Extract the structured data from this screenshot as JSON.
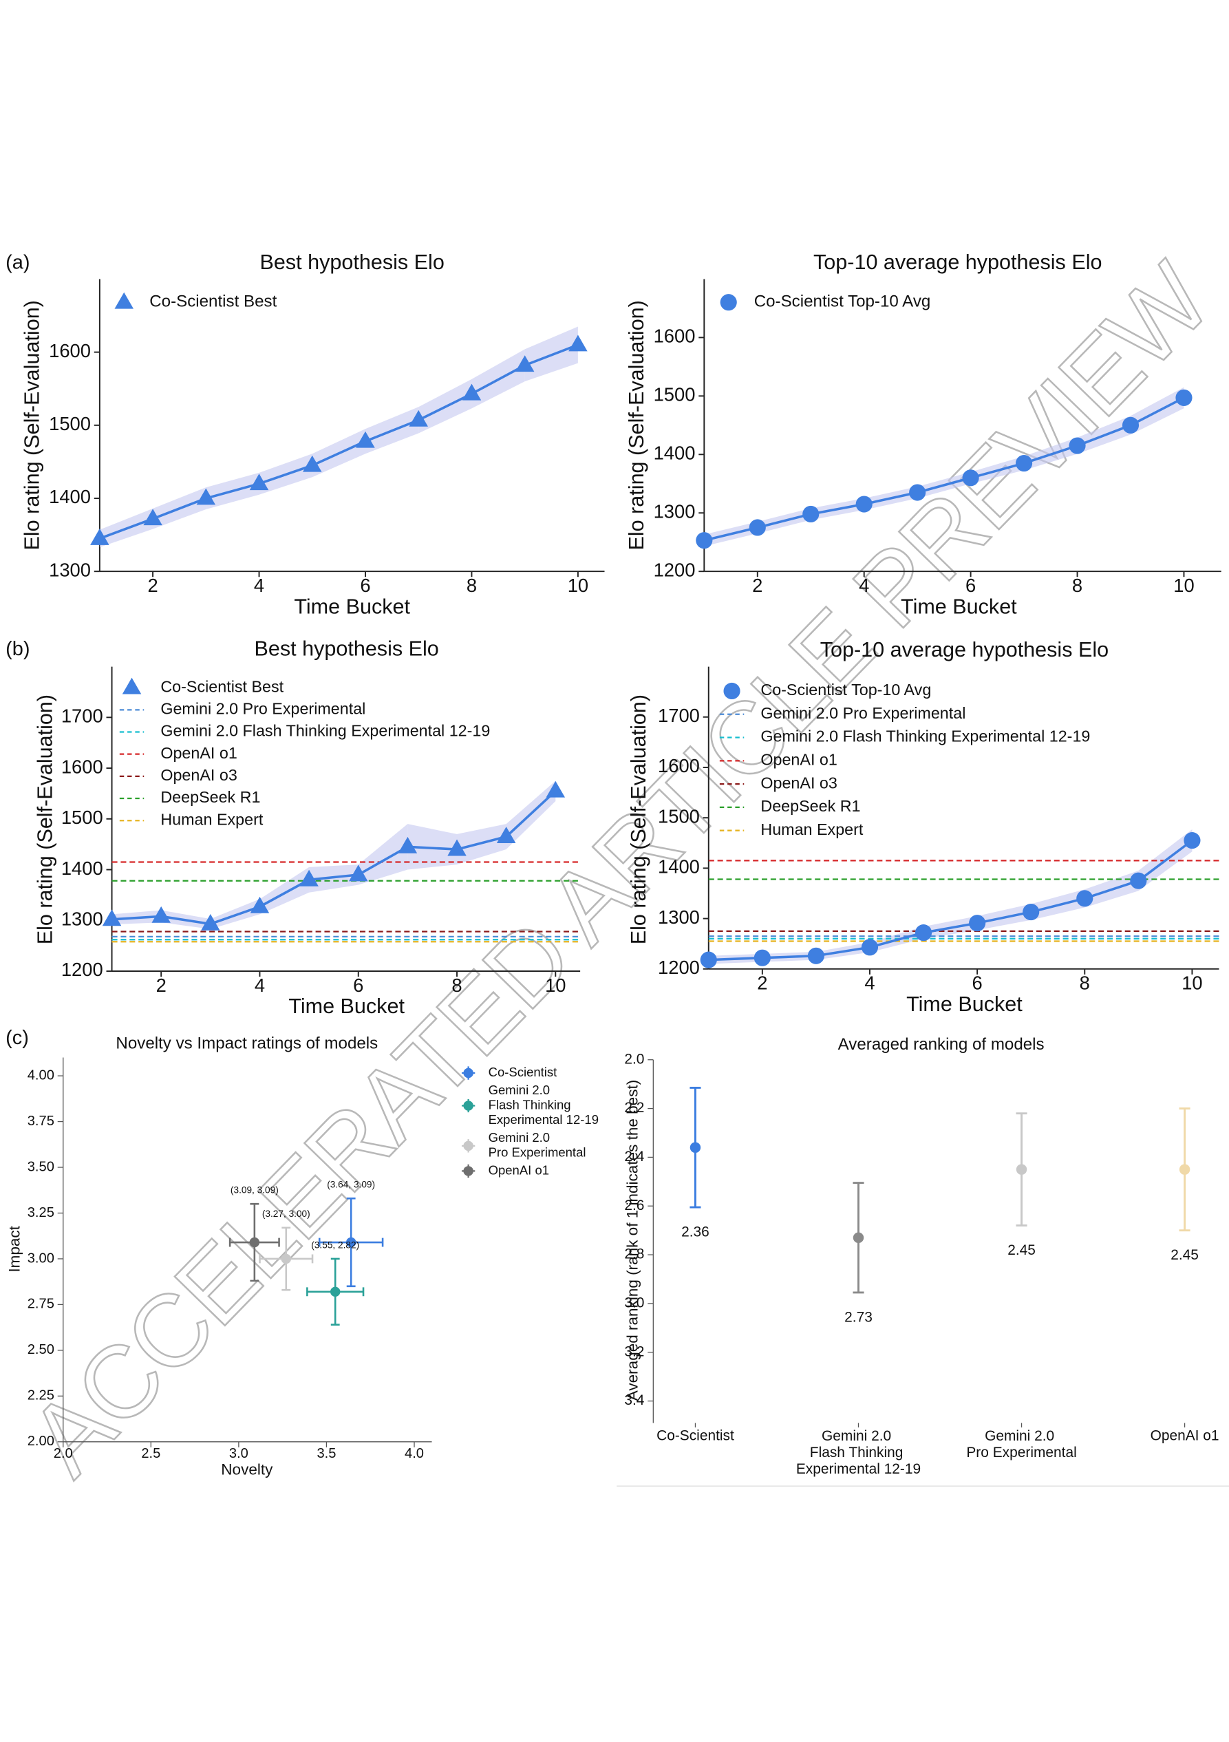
{
  "panel_labels": [
    "(a)",
    "(b)",
    "(c)"
  ],
  "watermark": "ACCELERATED ARTICLE PREVIEW",
  "chart_data": [
    {
      "type": "line",
      "title": "Best hypothesis Elo",
      "x_label": "Time Bucket",
      "y_label": "Elo rating (Self-Evaluation)",
      "x": [
        1,
        2,
        3,
        4,
        5,
        6,
        7,
        8,
        9,
        10
      ],
      "series": [
        {
          "name": "Co-Scientist Best",
          "color": "#3f7fe0",
          "marker": "triangle",
          "band_color": "#c5c8f0",
          "values": [
            1345,
            1372,
            1400,
            1420,
            1445,
            1478,
            1507,
            1543,
            1582,
            1610
          ],
          "band": [
            12,
            14,
            15,
            15,
            16,
            17,
            18,
            20,
            22,
            25
          ]
        }
      ],
      "xlim": [
        1,
        10.5
      ],
      "ylim": [
        1300,
        1700
      ],
      "xticks": [
        2,
        4,
        6,
        8,
        10
      ],
      "yticks": [
        1300,
        1400,
        1500,
        1600
      ],
      "legend": "upper left",
      "grid": false
    },
    {
      "type": "line",
      "title": "Top-10 average hypothesis Elo",
      "x_label": "Time Bucket",
      "y_label": "Elo rating (Self-Evaluation)",
      "x": [
        1,
        2,
        3,
        4,
        5,
        6,
        7,
        8,
        9,
        10
      ],
      "series": [
        {
          "name": "Co-Scientist Top-10 Avg",
          "color": "#3f7fe0",
          "marker": "circle",
          "band_color": "#c5c8f0",
          "values": [
            1253,
            1275,
            1298,
            1315,
            1335,
            1360,
            1385,
            1415,
            1450,
            1497
          ],
          "band": [
            10,
            10,
            10,
            10,
            10,
            10,
            12,
            14,
            16,
            18
          ]
        }
      ],
      "xlim": [
        1,
        10.7
      ],
      "ylim": [
        1200,
        1700
      ],
      "xticks": [
        2,
        4,
        6,
        8,
        10
      ],
      "yticks": [
        1200,
        1300,
        1400,
        1500,
        1600
      ],
      "legend": "upper left",
      "grid": false
    },
    {
      "type": "line",
      "title": "Best hypothesis Elo",
      "x_label": "Time Bucket",
      "y_label": "Elo rating (Self-Evaluation)",
      "x": [
        1,
        2,
        3,
        4,
        5,
        6,
        7,
        8,
        9,
        10
      ],
      "series": [
        {
          "name": "Co-Scientist Best",
          "color": "#3f7fe0",
          "marker": "triangle",
          "band_color": "#c5c8f0",
          "values": [
            1302,
            1308,
            1293,
            1327,
            1380,
            1390,
            1445,
            1440,
            1465,
            1555
          ],
          "band": [
            10,
            12,
            10,
            15,
            25,
            20,
            45,
            30,
            25,
            20
          ]
        }
      ],
      "reference_lines": [
        {
          "name": "Gemini 2.0 Pro Experimental",
          "color": "#4c8bd6",
          "value": 1268
        },
        {
          "name": "Gemini 2.0 Flash Thinking Experimental 12-19",
          "color": "#17becf",
          "value": 1262
        },
        {
          "name": "OpenAI o1",
          "color": "#d62728",
          "value": 1415
        },
        {
          "name": "OpenAI o3",
          "color": "#8c1c1c",
          "value": 1278
        },
        {
          "name": "DeepSeek R1",
          "color": "#2ca02c",
          "value": 1378
        },
        {
          "name": "Human Expert",
          "color": "#e6b422",
          "value": 1258
        }
      ],
      "xlim": [
        1,
        10.5
      ],
      "ylim": [
        1200,
        1800
      ],
      "xticks": [
        2,
        4,
        6,
        8,
        10
      ],
      "yticks": [
        1200,
        1300,
        1400,
        1500,
        1600,
        1700
      ],
      "legend": "upper left",
      "grid": false
    },
    {
      "type": "line",
      "title": "Top-10 average hypothesis Elo",
      "x_label": "Time Bucket",
      "y_label": "Elo rating (Self-Evaluation)",
      "x": [
        1,
        2,
        3,
        4,
        5,
        6,
        7,
        8,
        9,
        10
      ],
      "series": [
        {
          "name": "Co-Scientist Top-10 Avg",
          "color": "#3f7fe0",
          "marker": "circle",
          "band_color": "#c5c8f0",
          "values": [
            1218,
            1222,
            1226,
            1243,
            1272,
            1291,
            1313,
            1340,
            1375,
            1455
          ],
          "band": [
            8,
            8,
            8,
            10,
            12,
            14,
            16,
            18,
            20,
            22
          ]
        }
      ],
      "reference_lines": [
        {
          "name": "Gemini 2.0 Pro Experimental",
          "color": "#4c8bd6",
          "value": 1265
        },
        {
          "name": "Gemini 2.0 Flash Thinking Experimental 12-19",
          "color": "#17becf",
          "value": 1260
        },
        {
          "name": "OpenAI o1",
          "color": "#d62728",
          "value": 1415
        },
        {
          "name": "OpenAI o3",
          "color": "#8c1c1c",
          "value": 1275
        },
        {
          "name": "DeepSeek R1",
          "color": "#2ca02c",
          "value": 1378
        },
        {
          "name": "Human Expert",
          "color": "#e6b422",
          "value": 1255
        }
      ],
      "xlim": [
        1,
        10.5
      ],
      "ylim": [
        1200,
        1800
      ],
      "xticks": [
        2,
        4,
        6,
        8,
        10
      ],
      "yticks": [
        1200,
        1300,
        1400,
        1500,
        1600,
        1700
      ],
      "legend": "upper left",
      "grid": false
    },
    {
      "type": "scatter",
      "title": "Novelty vs Impact ratings of models",
      "x_label": "Novelty",
      "y_label": "Impact",
      "series": [
        {
          "name": "Co-Scientist",
          "color": "#3b7de0",
          "x": [
            3.64
          ],
          "y": [
            3.09
          ],
          "xerr": [
            0.18
          ],
          "yerr": [
            0.24
          ],
          "label": "(3.64, 3.09)"
        },
        {
          "name": "Gemini 2.0\nFlash Thinking\nExperimental 12-19",
          "color": "#2aa198",
          "x": [
            3.55
          ],
          "y": [
            2.82
          ],
          "xerr": [
            0.16
          ],
          "yerr": [
            0.18
          ],
          "label": "(3.55, 2.82)"
        },
        {
          "name": "Gemini 2.0\nPro Experimental",
          "color": "#c8c8c8",
          "x": [
            3.27
          ],
          "y": [
            3.0
          ],
          "xerr": [
            0.15
          ],
          "yerr": [
            0.17
          ],
          "label": "(3.27, 3.00)"
        },
        {
          "name": "OpenAI o1",
          "color": "#6e6e6e",
          "x": [
            3.09
          ],
          "y": [
            3.09
          ],
          "xerr": [
            0.14
          ],
          "yerr": [
            0.21
          ],
          "label": "(3.09, 3.09)"
        }
      ],
      "xlim": [
        2,
        4.1
      ],
      "ylim": [
        2,
        4.1
      ],
      "xticks": [
        {
          "value": 2,
          "label": "2.0"
        },
        2.5,
        {
          "value": 3,
          "label": "3.0"
        },
        3.5,
        {
          "value": 4,
          "label": "4.0"
        }
      ],
      "yticks": [
        {
          "value": 2,
          "label": "2.00"
        },
        2.25,
        {
          "value": 2.5,
          "label": "2.50"
        },
        2.75,
        {
          "value": 3,
          "label": "3.00"
        },
        3.25,
        {
          "value": 3.5,
          "label": "3.50"
        },
        3.75,
        {
          "value": 4,
          "label": "4.00"
        }
      ],
      "legend": "upper right",
      "grid": false
    },
    {
      "type": "errorbar",
      "title": "Averaged ranking of models",
      "y_label": "Averaged ranking (rank of 1 indicates the best)",
      "categories": [
        "Co-Scientist",
        "Gemini 2.0\nFlash Thinking\nExperimental 12-19",
        "Gemini 2.0\nPro Experimental",
        "OpenAI o1"
      ],
      "values": [
        2.36,
        2.73,
        2.45,
        2.45
      ],
      "errors": [
        0.245,
        0.225,
        0.23,
        0.25
      ],
      "colors": [
        "#3b7de0",
        "#8a8a8a",
        "#c8c8c8",
        "#f0d9a8"
      ],
      "ylim": [
        2.0,
        3.49
      ],
      "y_inverted": true,
      "yticks": [
        {
          "value": 2,
          "label": "2.0"
        },
        2.2,
        2.4,
        2.6,
        2.8,
        {
          "value": 3,
          "label": "3.0"
        },
        3.2,
        3.4
      ],
      "grid": false
    }
  ]
}
